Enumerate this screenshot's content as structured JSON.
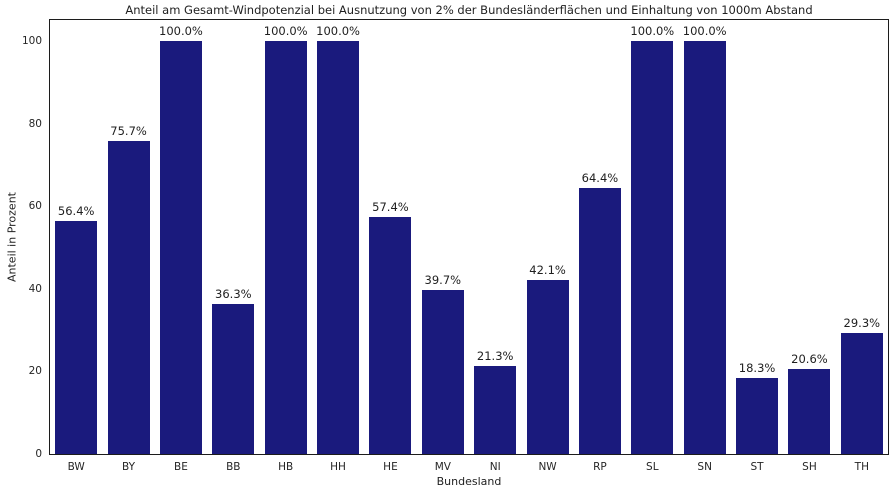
{
  "chart_data": {
    "type": "bar",
    "title": "Anteil am Gesamt-Windpotenzial bei Ausnutzung von 2% der Bundesländerflächen und Einhaltung von 1000m Abstand",
    "xlabel": "Bundesland",
    "ylabel": "Anteil in Prozent",
    "categories": [
      "BW",
      "BY",
      "BE",
      "BB",
      "HB",
      "HH",
      "HE",
      "MV",
      "NI",
      "NW",
      "RP",
      "SL",
      "SN",
      "ST",
      "SH",
      "TH"
    ],
    "values": [
      56.4,
      75.7,
      100.0,
      36.3,
      100.0,
      100.0,
      57.4,
      39.7,
      21.3,
      42.1,
      64.4,
      100.0,
      100.0,
      18.3,
      20.6,
      29.3
    ],
    "value_labels": [
      "56.4%",
      "75.7%",
      "100.0%",
      "36.3%",
      "100.0%",
      "100.0%",
      "57.4%",
      "39.7%",
      "21.3%",
      "42.1%",
      "64.4%",
      "100.0%",
      "100.0%",
      "18.3%",
      "20.6%",
      "29.3%"
    ],
    "yticks": [
      0,
      20,
      40,
      60,
      80,
      100
    ],
    "ylim": [
      0,
      105.1
    ],
    "bar_color": "#1a1a7d",
    "axis_edge_color": "#1c1c1c",
    "grid": false,
    "legend": null
  }
}
